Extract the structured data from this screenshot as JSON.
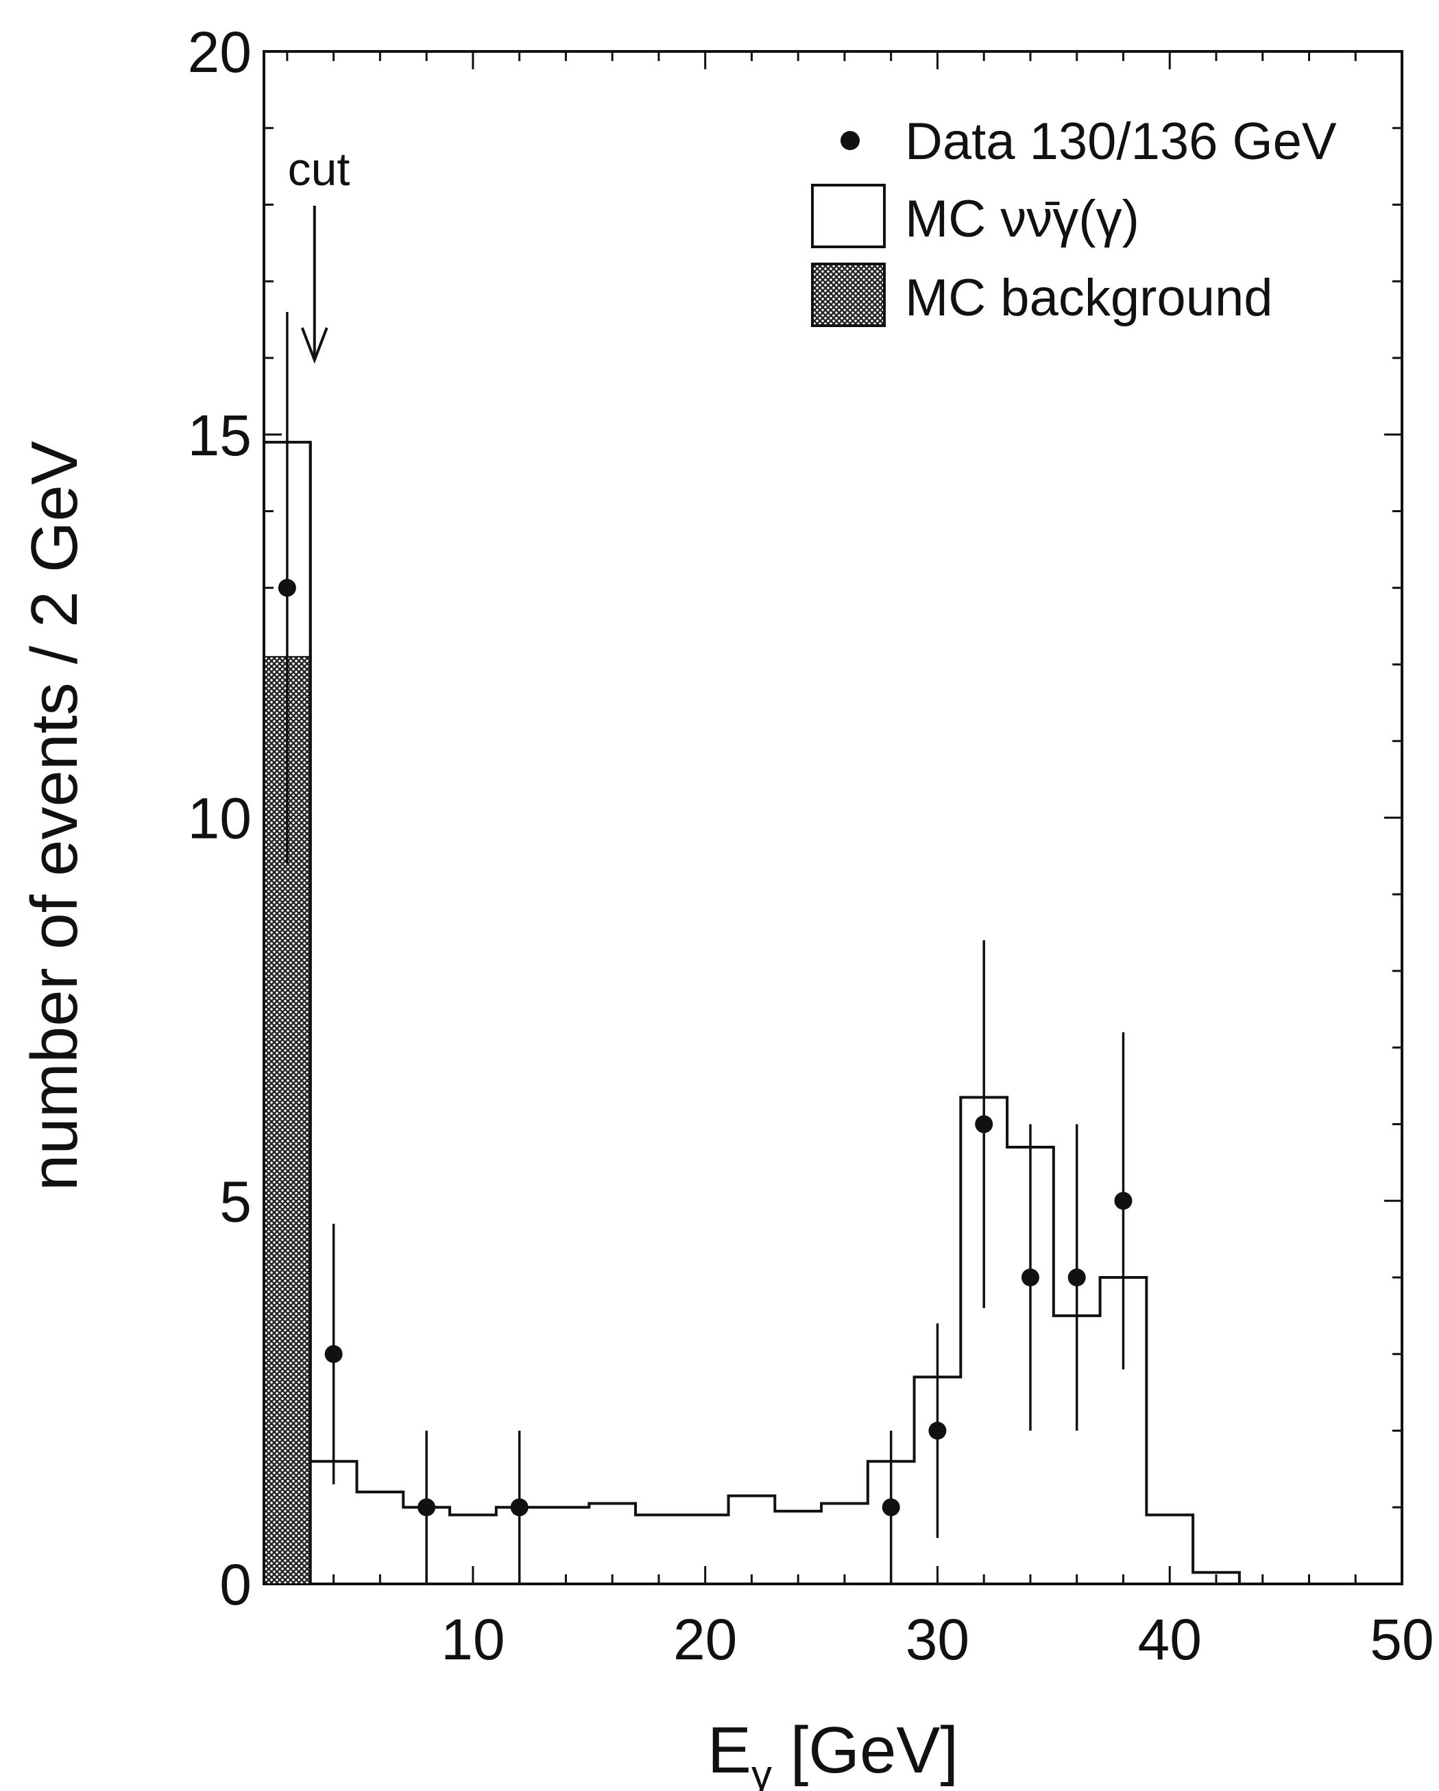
{
  "chart_data": {
    "type": "bar",
    "xlabel": "E",
    "xlabel_sub": "γ",
    "xlabel_unit": "[GeV]",
    "ylabel": "number of events / 2 GeV",
    "xlim": [
      1,
      50
    ],
    "ylim": [
      0,
      20
    ],
    "x_ticks": [
      10,
      20,
      30,
      40,
      50
    ],
    "y_ticks": [
      0,
      5,
      10,
      15,
      20
    ],
    "x_minor_step": 2,
    "y_minor_step": 1,
    "grid": false,
    "legend_position": "top-right",
    "legend": {
      "data_label": "Data 130/136 GeV",
      "mc_signal_label": "MC νν̄γ(γ)",
      "mc_background_label": "MC background"
    },
    "annotation": {
      "text": "cut",
      "x": 3
    },
    "series": [
      {
        "name": "MC νν̄γ(γ)",
        "kind": "step-histogram",
        "bin_edges": [
          1,
          3,
          5,
          7,
          9,
          11,
          13,
          15,
          17,
          19,
          21,
          23,
          25,
          27,
          29,
          31,
          33,
          35,
          37,
          39,
          41,
          43
        ],
        "values": [
          14.9,
          1.6,
          1.2,
          1.0,
          0.9,
          1.0,
          1.0,
          1.05,
          0.9,
          0.9,
          1.15,
          0.95,
          1.05,
          1.6,
          2.7,
          6.35,
          5.7,
          3.5,
          4.0,
          0.9,
          0.15
        ]
      },
      {
        "name": "MC background",
        "kind": "hatched-histogram",
        "bin_edges": [
          1,
          3
        ],
        "values": [
          12.1
        ]
      },
      {
        "name": "Data 130/136 GeV",
        "kind": "points-with-errors",
        "x": [
          2,
          4,
          8,
          12,
          28,
          30,
          32,
          34,
          36,
          38
        ],
        "y": [
          13,
          3,
          1,
          1,
          1,
          2,
          6,
          4,
          4,
          5
        ],
        "err_low": [
          3.6,
          1.7,
          1.0,
          1.0,
          1.0,
          1.4,
          2.4,
          2.0,
          2.0,
          2.2
        ],
        "err_high": [
          3.6,
          1.7,
          1.0,
          1.0,
          1.0,
          1.4,
          2.4,
          2.0,
          2.0,
          2.2
        ]
      }
    ]
  }
}
